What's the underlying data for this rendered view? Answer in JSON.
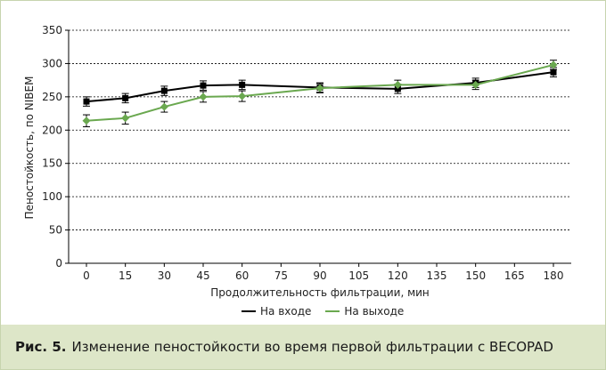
{
  "chart_data": {
    "type": "line",
    "ylabel": "Пеностойкость, по NIBEM",
    "xlabel": "Продолжительность фильтрации, мин",
    "ylim": [
      0,
      350
    ],
    "yticks": [
      0,
      50,
      100,
      150,
      200,
      250,
      300,
      350
    ],
    "xticks": [
      0,
      15,
      30,
      45,
      60,
      75,
      90,
      105,
      120,
      135,
      150,
      165,
      180
    ],
    "grid": "horizontal dashed",
    "legend_position": "bottom",
    "series": [
      {
        "name": "На входе",
        "color": "#000000",
        "marker": "square",
        "x": [
          0,
          15,
          30,
          45,
          60,
          90,
          120,
          150,
          180
        ],
        "values": [
          243,
          248,
          259,
          267,
          268,
          264,
          262,
          271,
          287
        ],
        "error": [
          7,
          7,
          7,
          7,
          7,
          7,
          7,
          7,
          7
        ]
      },
      {
        "name": "На выходе",
        "color": "#6aa84f",
        "marker": "diamond",
        "x": [
          0,
          15,
          30,
          45,
          60,
          90,
          120,
          150,
          180
        ],
        "values": [
          214,
          218,
          235,
          250,
          251,
          263,
          268,
          268,
          298
        ],
        "error": [
          9,
          9,
          8,
          8,
          8,
          7,
          7,
          7,
          7
        ]
      }
    ]
  },
  "caption": {
    "prefix": "Рис. 5.",
    "text": "Изменение пеностойкости во время первой фильтрации с BECOPAD"
  }
}
